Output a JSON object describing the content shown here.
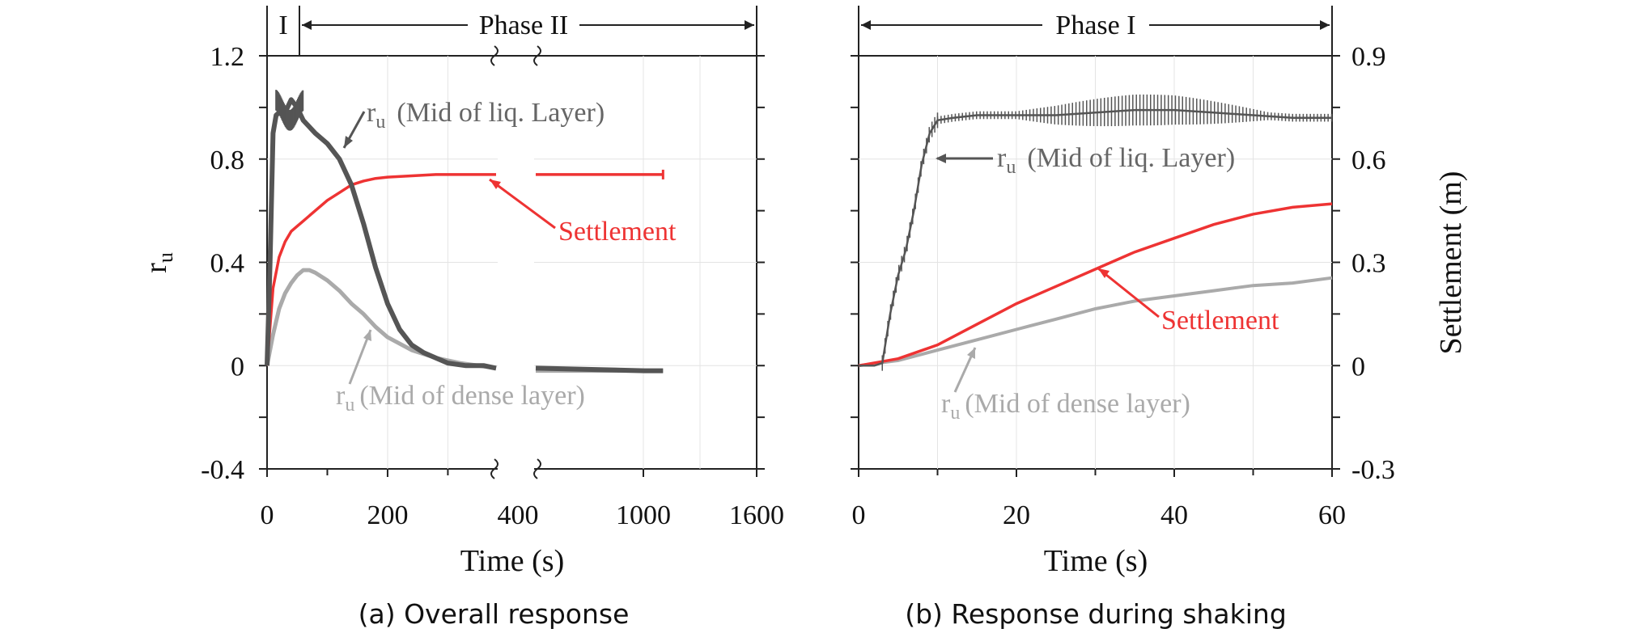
{
  "chart_data": [
    {
      "type": "line",
      "caption": "(a) Overall response",
      "xlabel": "Time (s)",
      "ylabel": "r",
      "ylabel_sub": "u",
      "x_tick_labels": [
        "0",
        "200",
        "400",
        "1000",
        "1600"
      ],
      "x_axis_note": "broken axis: 0–400 s linear, then compressed to 1600 s",
      "y_ticks": [
        -0.4,
        0,
        0.4,
        0.8,
        1.2
      ],
      "y_tick_labels": [
        "-0.4",
        "0",
        "0.4",
        "0.8",
        "1.2"
      ],
      "ylim": [
        -0.4,
        1.2
      ],
      "phase_labels": [
        "I",
        "Phase II"
      ],
      "phase_boundary_s": 60,
      "colors": {
        "liq": "#555555",
        "dense": "#aaaaaa",
        "settlement": "#ee3333"
      },
      "series": [
        {
          "name": "r_u (Mid of liq. Layer)",
          "label_main": "r",
          "label_sub": "u",
          "label_rest": "(Mid of liq. Layer)",
          "x": [
            0,
            5,
            10,
            15,
            20,
            30,
            40,
            50,
            60,
            80,
            100,
            120,
            140,
            160,
            180,
            200,
            220,
            240,
            260,
            280,
            300,
            330,
            360,
            380,
            420,
            1000,
            1100
          ],
          "y": [
            0,
            0.4,
            0.9,
            0.97,
            0.98,
            0.98,
            1.03,
            1.0,
            0.95,
            0.9,
            0.86,
            0.8,
            0.7,
            0.55,
            0.38,
            0.24,
            0.14,
            0.08,
            0.05,
            0.03,
            0.01,
            0.0,
            0.0,
            -0.01,
            -0.01,
            -0.02,
            -0.02
          ]
        },
        {
          "name": "r_u (Mid of dense layer)",
          "label_main": "r",
          "label_sub": "u",
          "label_rest": "(Mid of dense layer)",
          "x": [
            0,
            10,
            20,
            30,
            40,
            50,
            60,
            70,
            80,
            100,
            120,
            140,
            160,
            180,
            200,
            240,
            280,
            320,
            380,
            420,
            1000,
            1100
          ],
          "y": [
            0,
            0.12,
            0.22,
            0.28,
            0.32,
            0.35,
            0.37,
            0.37,
            0.36,
            0.33,
            0.29,
            0.24,
            0.2,
            0.15,
            0.11,
            0.06,
            0.03,
            0.01,
            -0.01,
            -0.02,
            -0.02,
            -0.02
          ]
        },
        {
          "name": "Settlement",
          "label_rest": "Settlement",
          "x": [
            0,
            5,
            10,
            20,
            30,
            40,
            50,
            60,
            80,
            100,
            120,
            140,
            160,
            180,
            200,
            240,
            280,
            320,
            380,
            420,
            1000,
            1100
          ],
          "y": [
            0,
            0.15,
            0.3,
            0.42,
            0.48,
            0.52,
            0.54,
            0.56,
            0.6,
            0.64,
            0.67,
            0.7,
            0.715,
            0.725,
            0.73,
            0.735,
            0.74,
            0.74,
            0.74,
            0.74,
            0.74,
            0.74
          ]
        }
      ]
    },
    {
      "type": "line",
      "caption": "(b) Response during shaking",
      "xlabel": "Time (s)",
      "y2label": "Settlement (m)",
      "xlim": [
        0,
        60
      ],
      "x_ticks": [
        0,
        20,
        40,
        60
      ],
      "x_tick_labels": [
        "0",
        "20",
        "40",
        "60"
      ],
      "ylim": [
        -0.4,
        1.2
      ],
      "y2lim": [
        -0.3,
        0.9
      ],
      "y2_ticks": [
        -0.3,
        0,
        0.3,
        0.6,
        0.9
      ],
      "y2_tick_labels": [
        "-0.3",
        "0",
        "0.3",
        "0.6",
        "0.9"
      ],
      "phase_labels": [
        "Phase I"
      ],
      "series": [
        {
          "name": "r_u (Mid of liq. Layer)",
          "label_main": "r",
          "label_sub": "u",
          "label_rest": "(Mid of liq. Layer)",
          "x": [
            0,
            2,
            3,
            4,
            5,
            6,
            7,
            8,
            9,
            10,
            12,
            15,
            20,
            25,
            30,
            35,
            40,
            45,
            50,
            55,
            60
          ],
          "y": [
            0,
            0,
            0.01,
            0.2,
            0.35,
            0.45,
            0.6,
            0.78,
            0.9,
            0.95,
            0.96,
            0.97,
            0.97,
            0.97,
            0.98,
            0.99,
            0.99,
            0.98,
            0.97,
            0.96,
            0.96
          ]
        },
        {
          "name": "r_u (Mid of dense layer)",
          "label_main": "r",
          "label_sub": "u",
          "label_rest": "(Mid of dense layer)",
          "x": [
            0,
            5,
            10,
            15,
            20,
            25,
            30,
            35,
            40,
            45,
            50,
            55,
            60
          ],
          "y": [
            0,
            0.02,
            0.06,
            0.1,
            0.14,
            0.18,
            0.22,
            0.25,
            0.27,
            0.29,
            0.31,
            0.32,
            0.34
          ]
        },
        {
          "name": "Settlement",
          "label_rest": "Settlement",
          "x": [
            0,
            5,
            10,
            15,
            20,
            25,
            30,
            35,
            40,
            45,
            50,
            55,
            60
          ],
          "y": [
            0,
            0.02,
            0.06,
            0.12,
            0.18,
            0.23,
            0.28,
            0.33,
            0.37,
            0.41,
            0.44,
            0.46,
            0.47
          ]
        }
      ]
    }
  ]
}
